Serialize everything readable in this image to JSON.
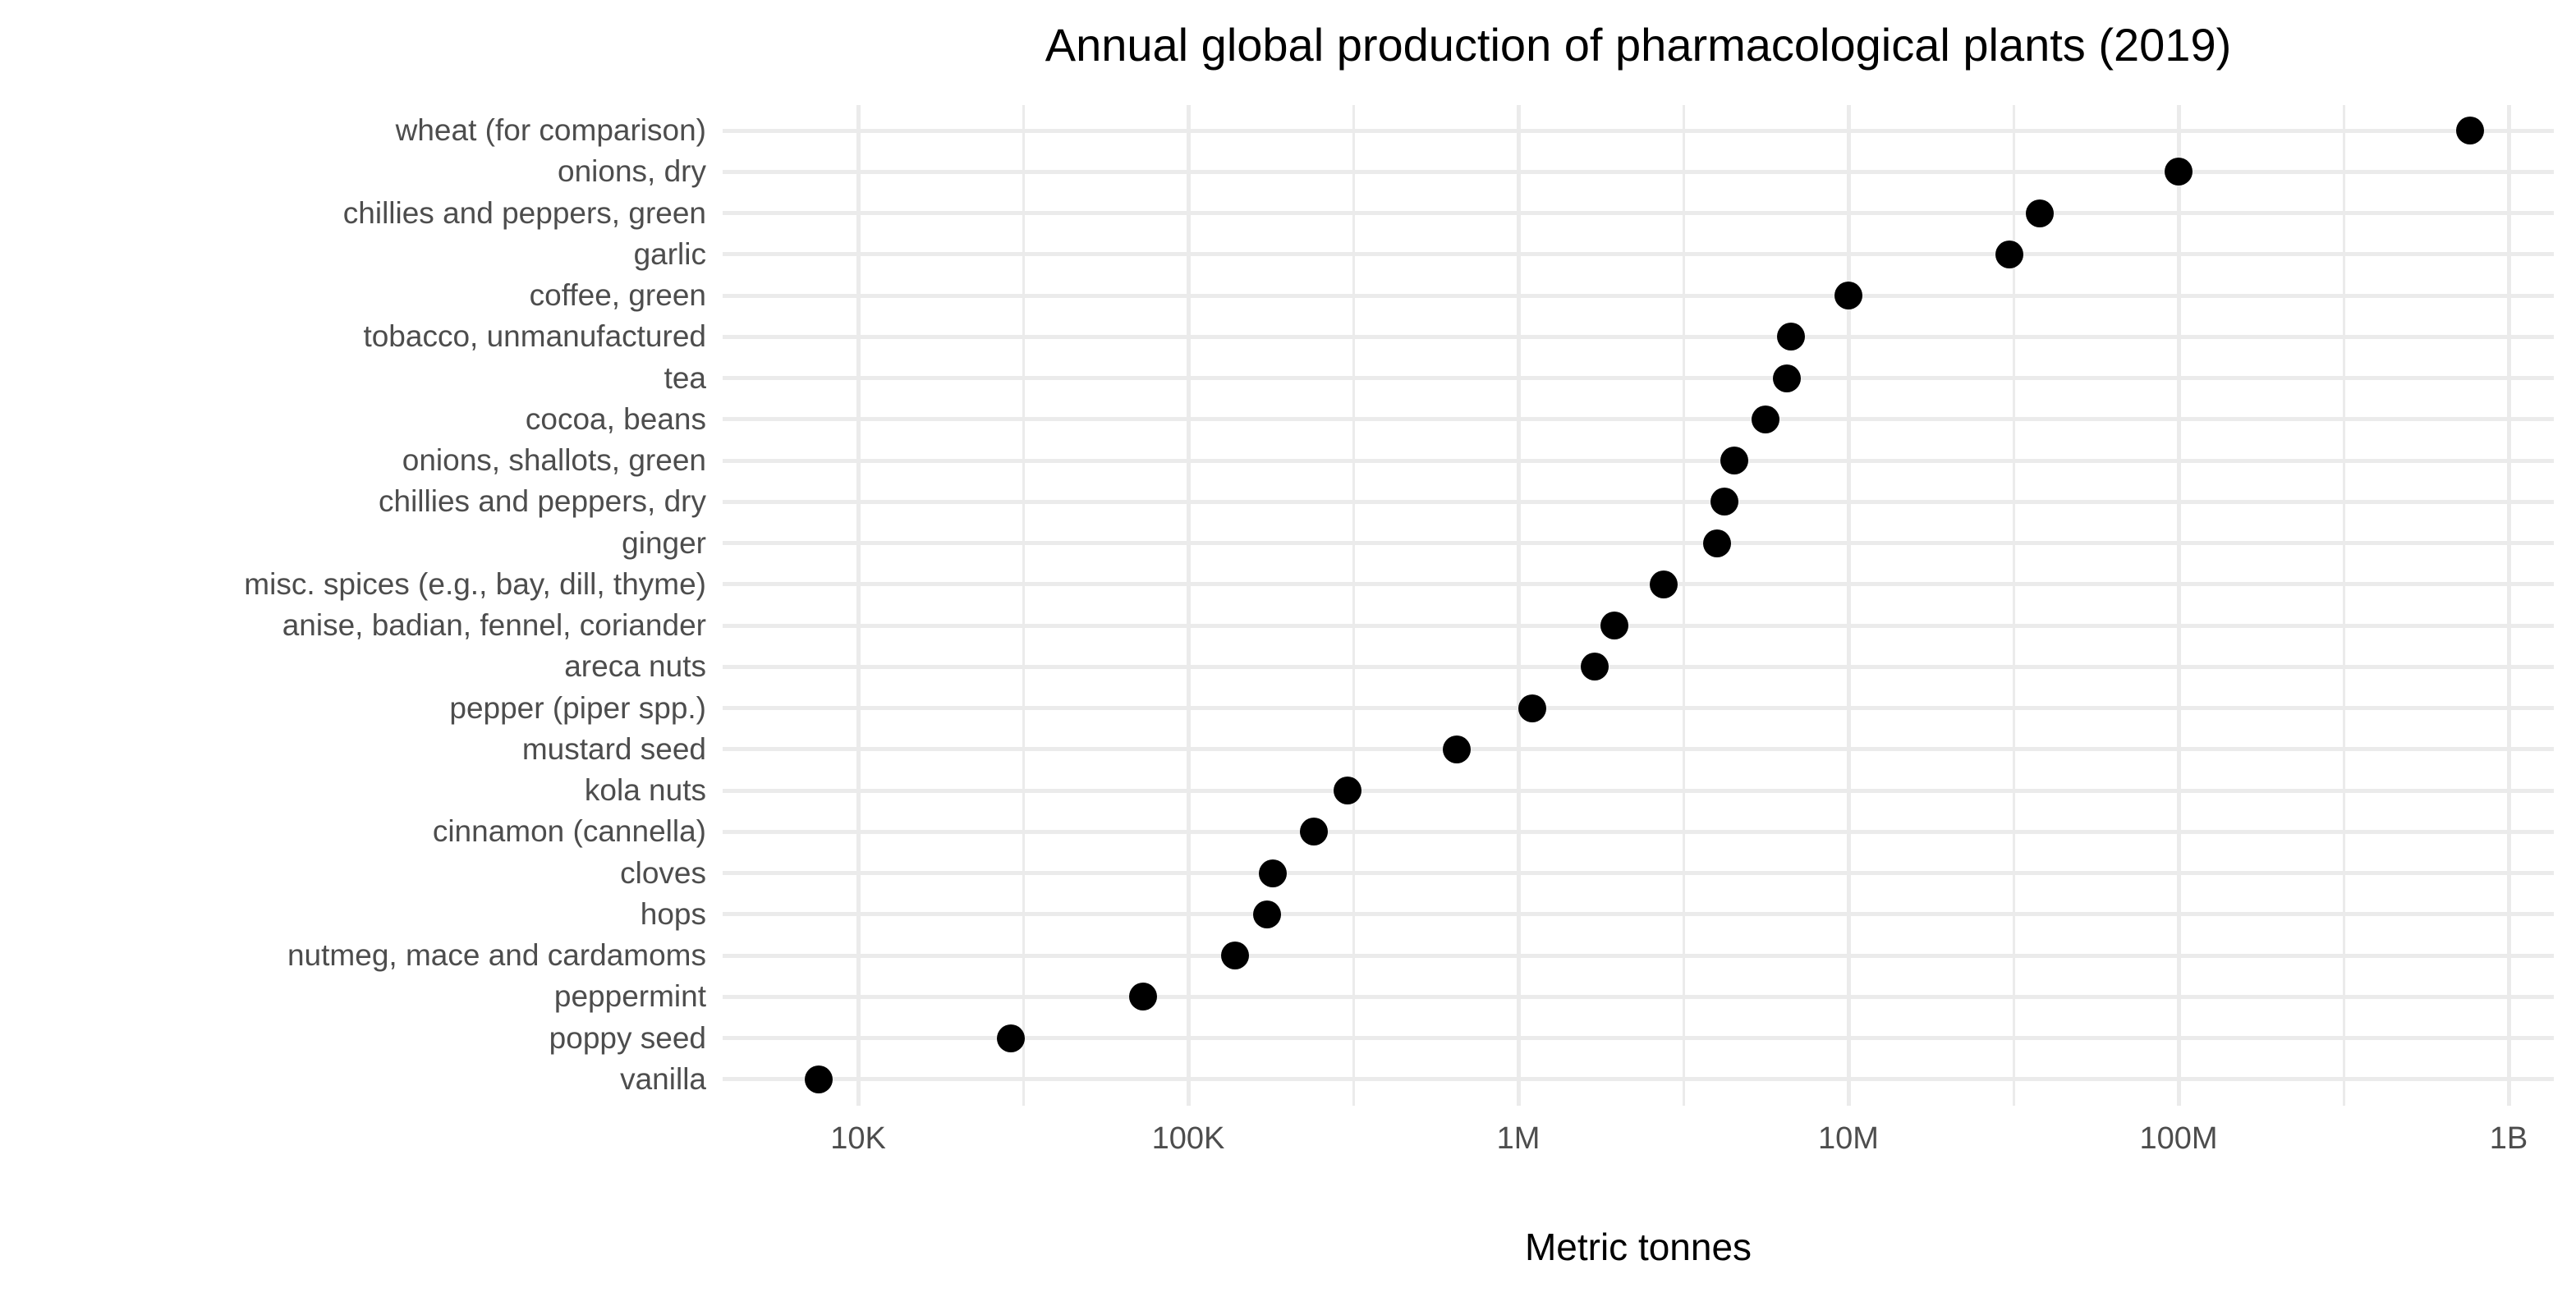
{
  "title": "Annual global production of pharmacological plants (2019)",
  "chart_data": {
    "type": "scatter",
    "subtype": "cleveland-dot-plot",
    "title": "Annual global production of pharmacological plants (2019)",
    "xlabel": "Metric tonnes",
    "ylabel": "",
    "x_scale": "log10",
    "xlim": [
      7000,
      1200000000
    ],
    "grid": "major and minor vertical gridlines plus one horizontal gridline per category; no axis lines, no tick marks (ggplot minimal theme)",
    "legend_position": "none",
    "point_color": "#000000",
    "grid_color": "#ebebeb",
    "axis_text_color": "#4d4d4d",
    "title_color": "#000000",
    "x_ticks": [
      {
        "label": "10K",
        "value": 10000
      },
      {
        "label": "100K",
        "value": 100000
      },
      {
        "label": "1M",
        "value": 1000000
      },
      {
        "label": "10M",
        "value": 10000000
      },
      {
        "label": "100M",
        "value": 100000000
      },
      {
        "label": "1B",
        "value": 1000000000
      }
    ],
    "x_minor_tick_values": [
      31623,
      316228,
      3162278,
      31622777,
      316227766
    ],
    "categories": [
      "wheat (for comparison)",
      "onions, dry",
      "chillies and peppers, green",
      "garlic",
      "coffee, green",
      "tobacco, unmanufactured",
      "tea",
      "cocoa, beans",
      "onions, shallots, green",
      "chillies and peppers, dry",
      "ginger",
      "misc. spices (e.g., bay, dill, thyme)",
      "anise, badian, fennel, coriander",
      "areca nuts",
      "pepper (piper spp.)",
      "mustard seed",
      "kola nuts",
      "cinnamon (cannella)",
      "cloves",
      "hops",
      "nutmeg, mace and cardamoms",
      "peppermint",
      "poppy seed",
      "vanilla"
    ],
    "values": [
      765000000,
      100000000,
      38000000,
      30700000,
      10000000,
      6700000,
      6500000,
      5600000,
      4500000,
      4200000,
      4000000,
      2750000,
      1950000,
      1700000,
      1100000,
      650000,
      304000,
      240000,
      180000,
      173000,
      139000,
      73000,
      29000,
      7600
    ],
    "units": "metric tonnes"
  }
}
